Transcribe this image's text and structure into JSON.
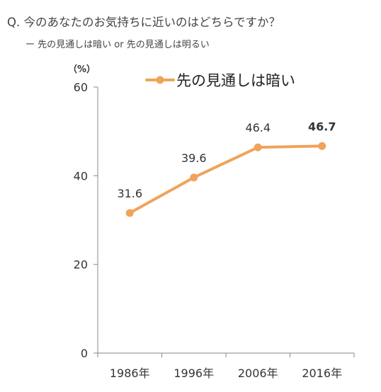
{
  "question": "Q. 今のあなたのお気持ちに近いのはどちらですか？",
  "subtitle": "ー 先の見通しは暗い or 先の見通しは明るい",
  "colors": {
    "series": "#f0a35a",
    "axis": "#888888"
  },
  "chart_data": {
    "type": "line",
    "unit_label": "（%）",
    "categories": [
      "1986年",
      "1996年",
      "2006年",
      "2016年"
    ],
    "ylim": [
      0,
      60
    ],
    "yticks": [
      0,
      20,
      40,
      60
    ],
    "grid": false,
    "legend_position": "top-right",
    "series": [
      {
        "name": "先の見通しは暗い",
        "values": [
          31.6,
          39.6,
          46.4,
          46.7
        ],
        "labels": [
          "31.6",
          "39.6",
          "46.4",
          "46.7"
        ],
        "bold_last_label": true
      }
    ]
  }
}
